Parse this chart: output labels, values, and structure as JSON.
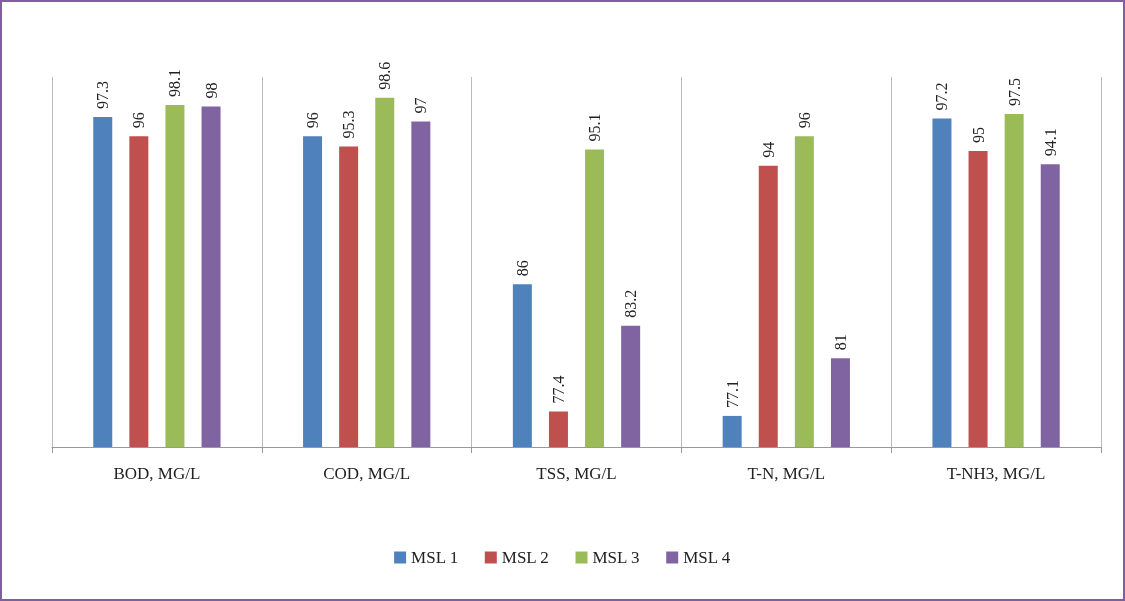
{
  "chart_data": {
    "type": "bar",
    "categories": [
      "BOD, MG/L",
      "COD, MG/L",
      "TSS, MG/L",
      "T-N, MG/L",
      "T-NH3, MG/L"
    ],
    "series": [
      {
        "name": "MSL 1",
        "color": "#4f81bd",
        "values": [
          97.3,
          96,
          86,
          77.1,
          97.2
        ]
      },
      {
        "name": "MSL 2",
        "color": "#c0504d",
        "values": [
          96,
          95.3,
          77.4,
          94,
          95
        ]
      },
      {
        "name": "MSL 3",
        "color": "#9bbb59",
        "values": [
          98.1,
          98.6,
          95.1,
          96,
          97.5
        ]
      },
      {
        "name": "MSL 4",
        "color": "#8064a2",
        "values": [
          98,
          97,
          83.2,
          81,
          94.1
        ]
      }
    ],
    "ylim": [
      75,
      100
    ],
    "tick_labels": "x",
    "data_labels": true,
    "grid": "x",
    "legend": "bottom"
  }
}
